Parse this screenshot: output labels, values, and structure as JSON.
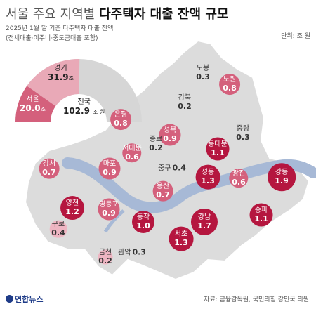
{
  "header": {
    "title_light": "서울 주요 지역별",
    "title_bold": "다주택자 대출 잔액 규모",
    "subtitle_line1": "2025년 1월 말 기준 다주택자 대출 잔액",
    "subtitle_line2": "(전세대출·이주비·중도금대출 포함)",
    "unit": "단위: 조 원"
  },
  "summary": {
    "gyeonggi_label": "경기",
    "gyeonggi_value": "31.9",
    "seoul_label": "서울",
    "seoul_value": "20.0",
    "unit_suffix": "조",
    "national_label": "전국",
    "national_value": "102.9",
    "national_unit": "조 원",
    "shares": {
      "seoul": 20.0,
      "gyeonggi": 31.9,
      "total": 102.9
    }
  },
  "districts": [
    {
      "name": "도봉",
      "value": 0.3
    },
    {
      "name": "노원",
      "value": 0.8
    },
    {
      "name": "강북",
      "value": 0.2
    },
    {
      "name": "은평",
      "value": 0.8
    },
    {
      "name": "성북",
      "value": 0.9
    },
    {
      "name": "중랑",
      "value": 0.3
    },
    {
      "name": "종로",
      "value": 0.2
    },
    {
      "name": "서대문",
      "value": 0.6
    },
    {
      "name": "동대문",
      "value": 1.1
    },
    {
      "name": "강서",
      "value": 0.7
    },
    {
      "name": "마포",
      "value": 0.9
    },
    {
      "name": "중구",
      "value": 0.4
    },
    {
      "name": "성동",
      "value": 1.3
    },
    {
      "name": "광진",
      "value": 0.6
    },
    {
      "name": "강동",
      "value": 1.9
    },
    {
      "name": "용산",
      "value": 0.7
    },
    {
      "name": "양천",
      "value": 1.2
    },
    {
      "name": "영등포",
      "value": 0.9
    },
    {
      "name": "동작",
      "value": 1.0
    },
    {
      "name": "강남",
      "value": 1.7
    },
    {
      "name": "송파",
      "value": 1.1
    },
    {
      "name": "서초",
      "value": 1.3
    },
    {
      "name": "구로",
      "value": 0.4
    },
    {
      "name": "금천",
      "value": 0.2
    },
    {
      "name": "관악",
      "value": 0.3
    }
  ],
  "footer": {
    "source": "자료: 금융감독원, 국민의힘 강민국 의원",
    "logo": "연합뉴스"
  },
  "colors": {
    "strong": "#b5163f",
    "mid": "#d4607c",
    "light": "#eeb5c2",
    "map": "#dcdcdc",
    "river": "#a7b9d6"
  }
}
